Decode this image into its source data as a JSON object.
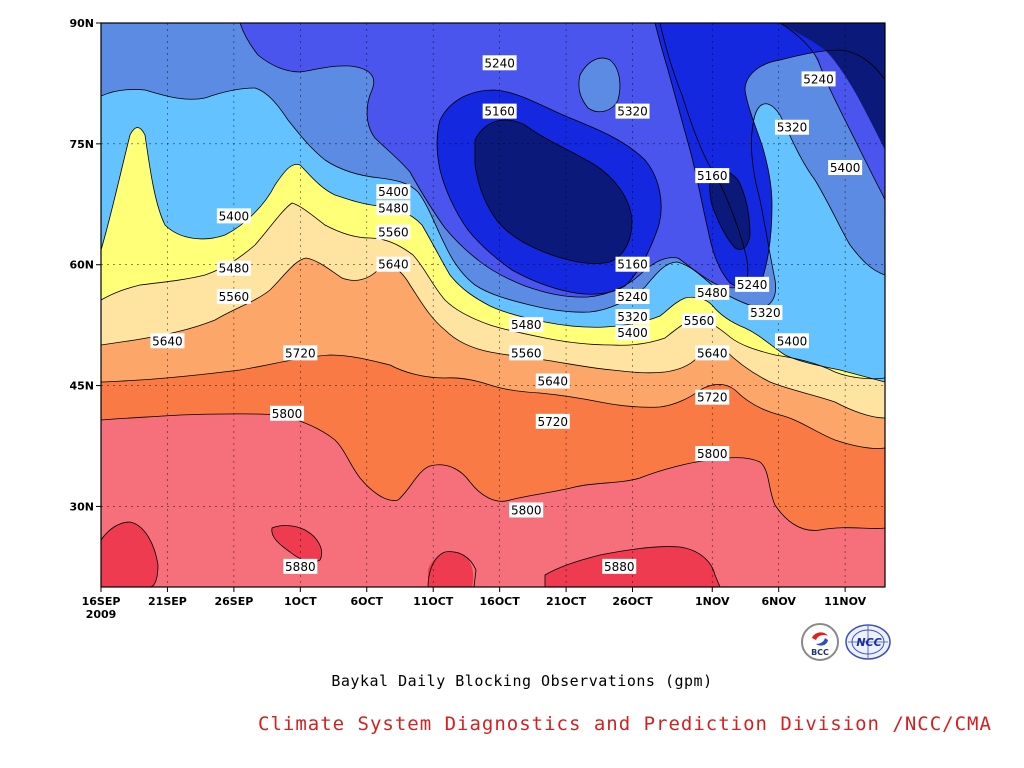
{
  "chart_data": {
    "type": "heatmap",
    "title": "Baykal Daily Blocking Observations (gpm)",
    "x_ticks": [
      "16SEP",
      "21SEP",
      "26SEP",
      "1OCT",
      "6OCT",
      "11OCT",
      "16OCT",
      "21OCT",
      "26OCT",
      "1NOV",
      "6NOV",
      "11NOV"
    ],
    "x_year_label": "2009",
    "y_ticks": [
      "30N",
      "45N",
      "60N",
      "75N",
      "90N"
    ],
    "y_tick_values": [
      30,
      45,
      60,
      75,
      90
    ],
    "xlim": [
      "2009-09-16",
      "2009-11-14"
    ],
    "ylim": [
      20,
      90
    ],
    "contour_levels": [
      5160,
      5240,
      5320,
      5400,
      5480,
      5560,
      5640,
      5720,
      5800,
      5880
    ],
    "colors": {
      "below_5160": "#0b1a7a",
      "5160_5240": "#1428e0",
      "5240_5320": "#4a55ee",
      "5320_5400": "#5b8be2",
      "5400_5480": "#64c3ff",
      "5480_5560": "#ffff78",
      "5560_5640": "#ffe3a0",
      "5640_5720": "#fda669",
      "5720_5800": "#fa7a45",
      "5800_5880": "#f5707a",
      "above_5880": "#ef3b4f"
    },
    "contour_labels": [
      {
        "text": "5240",
        "date": "2009-10-16",
        "lat": 85
      },
      {
        "text": "5160",
        "date": "2009-10-16",
        "lat": 79
      },
      {
        "text": "5320",
        "date": "2009-10-26",
        "lat": 79
      },
      {
        "text": "5240",
        "date": "2009-11-09",
        "lat": 83
      },
      {
        "text": "5320",
        "date": "2009-11-07",
        "lat": 77
      },
      {
        "text": "5400",
        "date": "2009-11-11",
        "lat": 72
      },
      {
        "text": "5160",
        "date": "2009-11-01",
        "lat": 71
      },
      {
        "text": "5400",
        "date": "2009-09-26",
        "lat": 66
      },
      {
        "text": "5400",
        "date": "2009-10-08",
        "lat": 69
      },
      {
        "text": "5480",
        "date": "2009-10-08",
        "lat": 67
      },
      {
        "text": "5560",
        "date": "2009-10-08",
        "lat": 64
      },
      {
        "text": "5480",
        "date": "2009-09-26",
        "lat": 59.5
      },
      {
        "text": "5560",
        "date": "2009-09-26",
        "lat": 56
      },
      {
        "text": "5640",
        "date": "2009-10-08",
        "lat": 60
      },
      {
        "text": "5160",
        "date": "2009-10-26",
        "lat": 60
      },
      {
        "text": "5240",
        "date": "2009-10-26",
        "lat": 56
      },
      {
        "text": "5320",
        "date": "2009-10-26",
        "lat": 53.5
      },
      {
        "text": "5400",
        "date": "2009-10-26",
        "lat": 51.5
      },
      {
        "text": "5240",
        "date": "2009-11-04",
        "lat": 57.5
      },
      {
        "text": "5320",
        "date": "2009-11-05",
        "lat": 54
      },
      {
        "text": "5480",
        "date": "2009-11-01",
        "lat": 56.5
      },
      {
        "text": "5560",
        "date": "2009-10-31",
        "lat": 53
      },
      {
        "text": "5400",
        "date": "2009-11-07",
        "lat": 50.5
      },
      {
        "text": "5640",
        "date": "2009-09-21",
        "lat": 50.5
      },
      {
        "text": "5720",
        "date": "2009-10-01",
        "lat": 49
      },
      {
        "text": "5480",
        "date": "2009-10-18",
        "lat": 52.5
      },
      {
        "text": "5560",
        "date": "2009-10-18",
        "lat": 49
      },
      {
        "text": "5640",
        "date": "2009-10-20",
        "lat": 45.5
      },
      {
        "text": "5640",
        "date": "2009-11-01",
        "lat": 49
      },
      {
        "text": "5720",
        "date": "2009-11-01",
        "lat": 43.5
      },
      {
        "text": "5800",
        "date": "2009-09-30",
        "lat": 41.5
      },
      {
        "text": "5720",
        "date": "2009-10-20",
        "lat": 40.5
      },
      {
        "text": "5800",
        "date": "2009-11-01",
        "lat": 36.5
      },
      {
        "text": "5800",
        "date": "2009-10-18",
        "lat": 29.5
      },
      {
        "text": "5880",
        "date": "2009-10-01",
        "lat": 22.5
      },
      {
        "text": "5880",
        "date": "2009-10-25",
        "lat": 22.5
      }
    ]
  },
  "caption": "Baykal Daily Blocking Observations (gpm)",
  "footer": "Climate System Diagnostics and Prediction Division /NCC/CMA",
  "logos": [
    {
      "text": "BCC",
      "icon": "bcc-logo-icon"
    },
    {
      "text": "NCC",
      "icon": "ncc-logo-icon"
    }
  ]
}
